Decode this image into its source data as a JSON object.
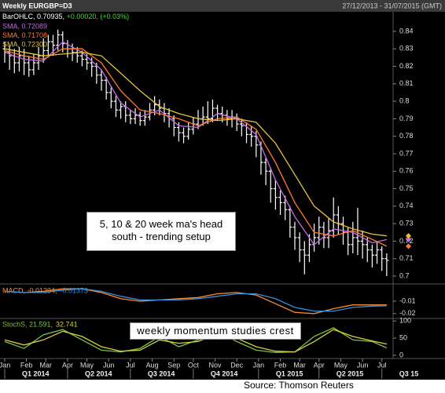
{
  "header": {
    "title": "Weekly EURGBP=D3",
    "period": "27/12/2013 - 31/07/2015 (GMT)",
    "bar_label": "BarOHLC, 0.70935,",
    "bar_change": "+0.00020, (+0.03%)"
  },
  "annotations": [
    "5, 10 & 20 week ma's head south - trending setup",
    "weekly momentum studies crest"
  ],
  "source": "Source: Thomson Reuters",
  "chart_data": [
    {
      "type": "ohlc",
      "xlim": [
        0,
        80
      ],
      "ylim": [
        0.6955,
        0.8512
      ],
      "yticks": [
        0.84,
        0.83,
        0.82,
        0.81,
        0.8,
        0.79,
        0.78,
        0.77,
        0.76,
        0.75,
        0.74,
        0.73,
        0.72,
        0.71,
        0.7
      ],
      "color": "#ffffff",
      "open": [
        0.83,
        0.828,
        0.826,
        0.822,
        0.826,
        0.822,
        0.818,
        0.822,
        0.826,
        0.829,
        0.834,
        0.832,
        0.838,
        0.833,
        0.83,
        0.828,
        0.826,
        0.824,
        0.822,
        0.82,
        0.815,
        0.812,
        0.805,
        0.8,
        0.795,
        0.797,
        0.792,
        0.79,
        0.792,
        0.789,
        0.791,
        0.795,
        0.798,
        0.796,
        0.793,
        0.79,
        0.785,
        0.782,
        0.78,
        0.784,
        0.787,
        0.79,
        0.791,
        0.79,
        0.796,
        0.793,
        0.792,
        0.79,
        0.791,
        0.787,
        0.786,
        0.781,
        0.78,
        0.775,
        0.765,
        0.76,
        0.75,
        0.745,
        0.742,
        0.738,
        0.728,
        0.722,
        0.715,
        0.712,
        0.718,
        0.722,
        0.728,
        0.722,
        0.726,
        0.735,
        0.73,
        0.725,
        0.718,
        0.722,
        0.72,
        0.718,
        0.715,
        0.712,
        0.715,
        0.71
      ],
      "high": [
        0.834,
        0.832,
        0.83,
        0.831,
        0.83,
        0.826,
        0.827,
        0.831,
        0.836,
        0.838,
        0.838,
        0.841,
        0.84,
        0.835,
        0.833,
        0.831,
        0.829,
        0.827,
        0.825,
        0.822,
        0.818,
        0.814,
        0.808,
        0.803,
        0.8,
        0.8,
        0.795,
        0.796,
        0.794,
        0.795,
        0.799,
        0.803,
        0.801,
        0.799,
        0.796,
        0.792,
        0.788,
        0.785,
        0.788,
        0.791,
        0.795,
        0.797,
        0.8,
        0.801,
        0.798,
        0.797,
        0.795,
        0.795,
        0.793,
        0.79,
        0.788,
        0.786,
        0.783,
        0.777,
        0.768,
        0.762,
        0.755,
        0.749,
        0.746,
        0.74,
        0.731,
        0.725,
        0.72,
        0.724,
        0.73,
        0.734,
        0.731,
        0.733,
        0.745,
        0.74,
        0.734,
        0.728,
        0.731,
        0.739,
        0.726,
        0.722,
        0.718,
        0.72,
        0.717,
        0.713
      ],
      "low": [
        0.822,
        0.818,
        0.816,
        0.817,
        0.815,
        0.814,
        0.815,
        0.818,
        0.822,
        0.825,
        0.826,
        0.829,
        0.828,
        0.825,
        0.823,
        0.822,
        0.82,
        0.818,
        0.814,
        0.81,
        0.806,
        0.801,
        0.796,
        0.791,
        0.79,
        0.788,
        0.787,
        0.787,
        0.786,
        0.786,
        0.789,
        0.792,
        0.792,
        0.788,
        0.785,
        0.78,
        0.777,
        0.776,
        0.778,
        0.781,
        0.784,
        0.786,
        0.787,
        0.788,
        0.789,
        0.788,
        0.786,
        0.785,
        0.783,
        0.78,
        0.776,
        0.774,
        0.768,
        0.758,
        0.752,
        0.742,
        0.738,
        0.735,
        0.732,
        0.722,
        0.715,
        0.708,
        0.701,
        0.708,
        0.714,
        0.718,
        0.716,
        0.716,
        0.722,
        0.724,
        0.718,
        0.712,
        0.713,
        0.712,
        0.71,
        0.708,
        0.705,
        0.707,
        0.703,
        0.7
      ],
      "close": [
        0.828,
        0.826,
        0.822,
        0.826,
        0.822,
        0.818,
        0.822,
        0.826,
        0.829,
        0.834,
        0.832,
        0.838,
        0.833,
        0.83,
        0.828,
        0.826,
        0.824,
        0.822,
        0.82,
        0.815,
        0.812,
        0.805,
        0.8,
        0.795,
        0.797,
        0.792,
        0.79,
        0.792,
        0.789,
        0.791,
        0.795,
        0.798,
        0.796,
        0.793,
        0.79,
        0.785,
        0.782,
        0.78,
        0.784,
        0.787,
        0.79,
        0.791,
        0.79,
        0.796,
        0.793,
        0.792,
        0.79,
        0.791,
        0.787,
        0.786,
        0.781,
        0.78,
        0.775,
        0.765,
        0.76,
        0.75,
        0.745,
        0.742,
        0.738,
        0.728,
        0.722,
        0.715,
        0.712,
        0.718,
        0.722,
        0.728,
        0.722,
        0.726,
        0.735,
        0.73,
        0.725,
        0.718,
        0.722,
        0.72,
        0.718,
        0.715,
        0.712,
        0.715,
        0.71,
        0.709
      ],
      "series": [
        {
          "name": "SMA, 0.72089",
          "color": "#c46be8",
          "x": [
            0,
            4,
            8,
            12,
            16,
            20,
            24,
            28,
            32,
            36,
            40,
            44,
            48,
            52,
            56,
            60,
            64,
            68,
            72,
            76,
            79
          ],
          "values": [
            0.828,
            0.824,
            0.823,
            0.834,
            0.828,
            0.818,
            0.799,
            0.791,
            0.795,
            0.786,
            0.785,
            0.793,
            0.79,
            0.781,
            0.755,
            0.734,
            0.718,
            0.727,
            0.725,
            0.719,
            0.72089
          ]
        },
        {
          "name": "SMA, 0.71708",
          "color": "#ff7a2e",
          "x": [
            0,
            4,
            8,
            12,
            16,
            20,
            24,
            28,
            32,
            36,
            40,
            44,
            48,
            52,
            56,
            60,
            64,
            68,
            72,
            76,
            79
          ],
          "values": [
            0.829,
            0.826,
            0.824,
            0.83,
            0.83,
            0.822,
            0.806,
            0.795,
            0.793,
            0.79,
            0.786,
            0.79,
            0.791,
            0.784,
            0.765,
            0.742,
            0.725,
            0.723,
            0.726,
            0.721,
            0.71708
          ]
        },
        {
          "name": "SMA, 0.72300",
          "color": "#e6c43a",
          "x": [
            0,
            4,
            8,
            12,
            16,
            20,
            24,
            28,
            32,
            36,
            40,
            44,
            48,
            52,
            56,
            60,
            64,
            68,
            72,
            76,
            79
          ],
          "values": [
            0.83,
            0.828,
            0.826,
            0.827,
            0.828,
            0.826,
            0.816,
            0.806,
            0.797,
            0.793,
            0.79,
            0.789,
            0.79,
            0.788,
            0.776,
            0.758,
            0.74,
            0.731,
            0.727,
            0.724,
            0.723
          ]
        }
      ]
    },
    {
      "type": "line",
      "xlim": [
        0,
        80
      ],
      "ylim": [
        -0.0233,
        0.0033
      ],
      "yticks": [
        -0.01,
        -0.02
      ],
      "series": [
        {
          "name": "MACD, -0.01294,",
          "color": "#ff8c2e",
          "x": [
            0,
            4,
            8,
            12,
            16,
            20,
            24,
            28,
            32,
            36,
            40,
            44,
            48,
            52,
            56,
            60,
            64,
            68,
            72,
            76,
            79
          ],
          "values": [
            -0.002,
            -0.003,
            -0.002,
            0.0,
            0.0,
            -0.003,
            -0.008,
            -0.01,
            -0.009,
            -0.008,
            -0.007,
            -0.004,
            -0.003,
            -0.005,
            -0.012,
            -0.019,
            -0.02,
            -0.016,
            -0.013,
            -0.013,
            -0.01294
          ]
        },
        {
          "name": "-0.01373",
          "color": "#3a8fd8",
          "x": [
            0,
            4,
            8,
            12,
            16,
            20,
            24,
            28,
            32,
            36,
            40,
            44,
            48,
            52,
            56,
            60,
            64,
            68,
            72,
            76,
            79
          ],
          "values": [
            -0.002,
            -0.003,
            -0.003,
            -0.001,
            0.0,
            -0.002,
            -0.006,
            -0.009,
            -0.009,
            -0.009,
            -0.008,
            -0.006,
            -0.004,
            -0.004,
            -0.008,
            -0.015,
            -0.018,
            -0.018,
            -0.015,
            -0.014,
            -0.01373
          ]
        }
      ]
    },
    {
      "type": "line",
      "xlim": [
        0,
        80
      ],
      "ylim": [
        -7,
        105
      ],
      "yticks": [
        100,
        50,
        0
      ],
      "xticks": [
        {
          "value": 0,
          "label": "Jan"
        },
        {
          "value": 4.5,
          "label": "Feb"
        },
        {
          "value": 8.5,
          "label": "Mar"
        },
        {
          "value": 13,
          "label": "Apr"
        },
        {
          "value": 17,
          "label": "May"
        },
        {
          "value": 21.5,
          "label": "Jun"
        },
        {
          "value": 26,
          "label": "Jul"
        },
        {
          "value": 30.5,
          "label": "Aug"
        },
        {
          "value": 35,
          "label": "Sep"
        },
        {
          "value": 39,
          "label": "Oct"
        },
        {
          "value": 43.5,
          "label": "Nov"
        },
        {
          "value": 48,
          "label": "Dec"
        },
        {
          "value": 52.5,
          "label": "Jan"
        },
        {
          "value": 57,
          "label": "Feb"
        },
        {
          "value": 61,
          "label": "Mar"
        },
        {
          "value": 65,
          "label": "Apr"
        },
        {
          "value": 69.5,
          "label": "May"
        },
        {
          "value": 74,
          "label": "Jun"
        },
        {
          "value": 78,
          "label": "Jul"
        }
      ],
      "quarter_ticks": [
        {
          "value": 0,
          "label": "Q1 2014"
        },
        {
          "value": 13,
          "label": "Q2 2014"
        },
        {
          "value": 26,
          "label": "Q3 2014"
        },
        {
          "value": 39,
          "label": "Q4 2014"
        },
        {
          "value": 52.5,
          "label": "Q1 2015"
        },
        {
          "value": 65,
          "label": "Q2 2015"
        },
        {
          "value": 78,
          "label": "Q3 15"
        }
      ],
      "series": [
        {
          "name": "StochS, 21.591,",
          "color": "#7cc242",
          "x": [
            0,
            4,
            8,
            12,
            16,
            20,
            24,
            28,
            32,
            36,
            40,
            44,
            48,
            52,
            56,
            60,
            64,
            68,
            72,
            76,
            79
          ],
          "values": [
            40,
            20,
            60,
            75,
            45,
            15,
            10,
            20,
            55,
            25,
            45,
            70,
            40,
            15,
            8,
            10,
            55,
            80,
            45,
            40,
            21.591
          ]
        },
        {
          "name": "32.741",
          "color": "#d8d040",
          "x": [
            0,
            4,
            8,
            12,
            16,
            20,
            24,
            28,
            32,
            36,
            40,
            44,
            48,
            52,
            56,
            60,
            64,
            68,
            72,
            76,
            79
          ],
          "values": [
            45,
            30,
            45,
            70,
            55,
            25,
            12,
            15,
            45,
            35,
            40,
            65,
            50,
            25,
            12,
            10,
            40,
            75,
            55,
            42,
            32.741
          ]
        }
      ]
    }
  ]
}
